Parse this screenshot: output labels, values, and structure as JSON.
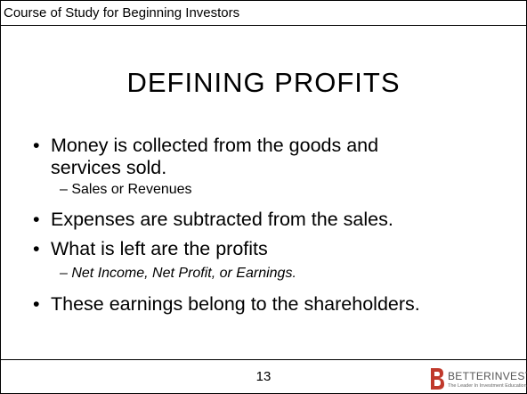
{
  "header": {
    "title": "Course of Study for Beginning Investors"
  },
  "title": "DEFINING PROFITS",
  "bullets": [
    {
      "text": "Money is collected from the goods and services sold.",
      "sub": "– Sales or Revenues"
    },
    {
      "text": "Expenses are subtracted from the sales."
    },
    {
      "text": "What is left are the profits",
      "sub": "– Net Income, Net Profit, or Earnings."
    },
    {
      "text": "These earnings belong to the shareholders."
    }
  ],
  "footer": {
    "page": "13",
    "logo": {
      "name": "BETTERINVESTING",
      "tagline": "The Leader In Investment Education"
    }
  }
}
